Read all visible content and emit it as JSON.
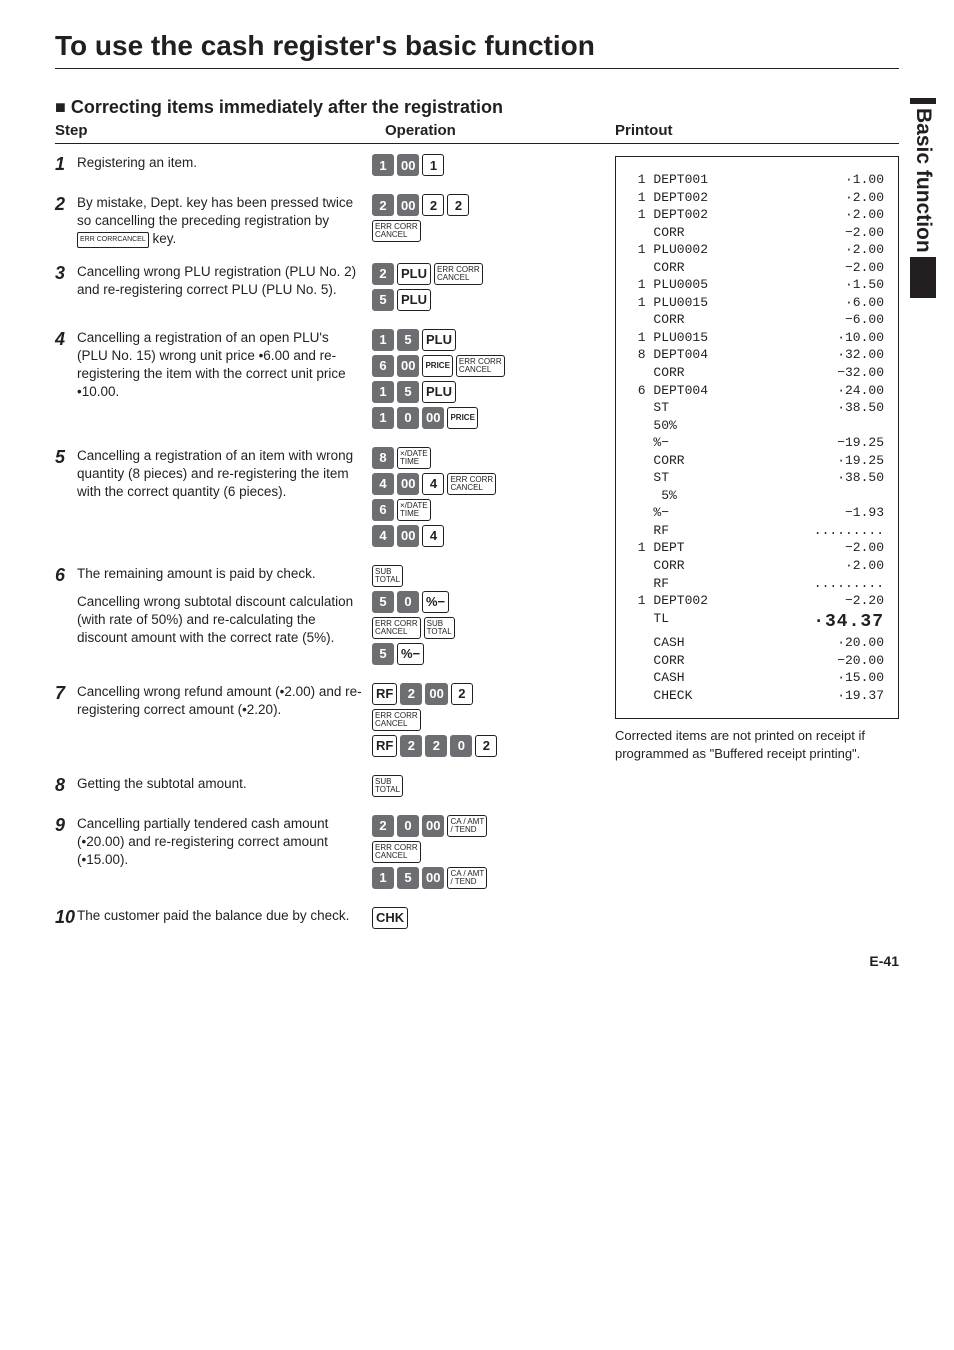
{
  "page": {
    "title": "To use the cash register's basic function",
    "section_title": "■ Correcting items immediately after the registration",
    "headers": {
      "step": "Step",
      "operation": "Operation",
      "printout": "Printout"
    },
    "side_tab": "Basic function",
    "page_number": "E-41",
    "note": "Corrected items are not printed on receipt if programmed as \"Buffered receipt printing\"."
  },
  "keys": {
    "err_corr": "ERR CORR\nCANCEL",
    "plu": "PLU",
    "price": "PRICE",
    "xdate": "×/DATE\nTIME",
    "subtotal": "SUB\nTOTAL",
    "pct_minus": "%−",
    "rf": "RF",
    "ca_amt": "CA / AMT\n/ TEND",
    "chk": "CHK"
  },
  "steps": [
    {
      "n": "1",
      "text": "Registering an item.",
      "ops": [
        [
          {
            "t": "1",
            "dark": true
          },
          {
            "t": "00",
            "dark": true
          },
          {
            "t": "1"
          }
        ]
      ]
    },
    {
      "n": "2",
      "text_parts": [
        "By mistake, Dept. key has been pressed twice so cancelling the preceding registration by ",
        {
          "key": "err_corr"
        },
        " key."
      ],
      "ops": [
        [
          {
            "t": "2",
            "dark": true
          },
          {
            "t": "00",
            "dark": true
          },
          {
            "t": "2"
          },
          {
            "t": "2"
          }
        ],
        [
          {
            "k": "err_corr"
          }
        ]
      ]
    },
    {
      "n": "3",
      "text": "Cancelling wrong PLU registration (PLU No. 2) and re-registering correct PLU (PLU No. 5).",
      "ops": [
        [
          {
            "t": "2",
            "dark": true
          },
          {
            "k": "plu"
          },
          {
            "k": "err_corr"
          }
        ],
        [
          {
            "t": "5",
            "dark": true
          },
          {
            "k": "plu"
          }
        ]
      ]
    },
    {
      "n": "4",
      "text": "Cancelling a registration of an open PLU's (PLU No. 15) wrong unit price •6.00 and re-registering the item with the correct unit price •10.00.",
      "ops": [
        [
          {
            "t": "1",
            "dark": true
          },
          {
            "t": "5",
            "dark": true
          },
          {
            "k": "plu"
          }
        ],
        [
          {
            "t": "6",
            "dark": true
          },
          {
            "t": "00",
            "dark": true
          },
          {
            "k": "price"
          },
          {
            "k": "err_corr"
          }
        ],
        [
          {
            "t": "1",
            "dark": true
          },
          {
            "t": "5",
            "dark": true
          },
          {
            "k": "plu"
          }
        ],
        [
          {
            "t": "1",
            "dark": true
          },
          {
            "t": "0",
            "dark": true
          },
          {
            "t": "00",
            "dark": true
          },
          {
            "k": "price"
          }
        ]
      ]
    },
    {
      "n": "5",
      "text": "Cancelling a registration of an item with wrong quantity (8 pieces) and re-registering the item with the correct quantity (6 pieces).",
      "ops": [
        [
          {
            "t": "8",
            "dark": true
          },
          {
            "k": "xdate"
          }
        ],
        [
          {
            "t": "4",
            "dark": true
          },
          {
            "t": "00",
            "dark": true
          },
          {
            "t": "4"
          },
          {
            "k": "err_corr"
          }
        ],
        [
          {
            "t": "6",
            "dark": true
          },
          {
            "k": "xdate"
          }
        ],
        [
          {
            "t": "4",
            "dark": true
          },
          {
            "t": "00",
            "dark": true
          },
          {
            "t": "4"
          }
        ]
      ]
    },
    {
      "n": "6",
      "text": "The remaining amount is paid by check.",
      "text2": "Cancelling wrong subtotal discount calculation (with rate of 50%) and re-calculating the discount amount with the correct rate (5%).",
      "ops": [
        [
          {
            "k": "subtotal"
          }
        ],
        [
          {
            "t": "5",
            "dark": true
          },
          {
            "t": "0",
            "dark": true
          },
          {
            "k": "pct_minus"
          }
        ],
        [
          {
            "k": "err_corr"
          },
          {
            "k": "subtotal"
          }
        ],
        [
          {
            "t": "5",
            "dark": true
          },
          {
            "k": "pct_minus"
          }
        ]
      ]
    },
    {
      "n": "7",
      "text": "Cancelling wrong refund amount (•2.00) and re-registering correct amount (•2.20).",
      "ops": [
        [
          {
            "k": "rf"
          },
          {
            "t": "2",
            "dark": true
          },
          {
            "t": "00",
            "dark": true
          },
          {
            "t": "2"
          }
        ],
        [
          {
            "k": "err_corr"
          }
        ],
        [
          {
            "k": "rf"
          },
          {
            "t": "2",
            "dark": true
          },
          {
            "t": "2",
            "dark": true
          },
          {
            "t": "0",
            "dark": true
          },
          {
            "t": "2"
          }
        ]
      ]
    },
    {
      "n": "8",
      "text": "Getting the subtotal amount.",
      "ops": [
        [
          {
            "k": "subtotal"
          }
        ]
      ]
    },
    {
      "n": "9",
      "text": "Cancelling partially tendered cash amount (•20.00) and re-registering correct amount (•15.00).",
      "ops": [
        [
          {
            "t": "2",
            "dark": true
          },
          {
            "t": "0",
            "dark": true
          },
          {
            "t": "00",
            "dark": true
          },
          {
            "k": "ca_amt"
          }
        ],
        [
          {
            "k": "err_corr"
          }
        ],
        [
          {
            "t": "1",
            "dark": true
          },
          {
            "t": "5",
            "dark": true
          },
          {
            "t": "00",
            "dark": true
          },
          {
            "k": "ca_amt"
          }
        ]
      ]
    },
    {
      "n": "10",
      "text": "The customer paid the balance due by check.",
      "ops": [
        [
          {
            "k": "chk"
          }
        ]
      ]
    }
  ],
  "receipt": [
    {
      "l": " 1 DEPT001",
      "r": "·1.00"
    },
    {
      "l": " 1 DEPT002",
      "r": "·2.00"
    },
    {
      "l": " 1 DEPT002",
      "r": "·2.00"
    },
    {
      "l": "   CORR",
      "r": "−2.00"
    },
    {
      "l": " 1 PLU0002",
      "r": "·2.00"
    },
    {
      "l": "   CORR",
      "r": "−2.00"
    },
    {
      "l": " 1 PLU0005",
      "r": "·1.50"
    },
    {
      "l": " 1 PLU0015",
      "r": "·6.00"
    },
    {
      "l": "   CORR",
      "r": "−6.00"
    },
    {
      "l": " 1 PLU0015",
      "r": "·10.00"
    },
    {
      "l": " 8 DEPT004",
      "r": "·32.00"
    },
    {
      "l": "   CORR",
      "r": "−32.00"
    },
    {
      "l": " 6 DEPT004",
      "r": "·24.00"
    },
    {
      "l": "   ST",
      "r": "·38.50"
    },
    {
      "l": "   50%",
      "r": ""
    },
    {
      "l": "   %−",
      "r": "−19.25"
    },
    {
      "l": "   CORR",
      "r": "·19.25"
    },
    {
      "l": "   ST",
      "r": "·38.50"
    },
    {
      "l": "    5%",
      "r": ""
    },
    {
      "l": "   %−",
      "r": "−1.93"
    },
    {
      "l": "   RF",
      "r": "........."
    },
    {
      "l": " 1 DEPT",
      "r": "−2.00"
    },
    {
      "l": "   CORR",
      "r": "·2.00"
    },
    {
      "l": "   RF",
      "r": "........."
    },
    {
      "l": " 1 DEPT002",
      "r": "−2.20"
    },
    {
      "l": "   TL",
      "r": "·34.37",
      "big": true
    },
    {
      "l": "   CASH",
      "r": "·20.00"
    },
    {
      "l": "   CORR",
      "r": "−20.00"
    },
    {
      "l": "   CASH",
      "r": "·15.00"
    },
    {
      "l": "   CHECK",
      "r": "·19.37"
    }
  ]
}
